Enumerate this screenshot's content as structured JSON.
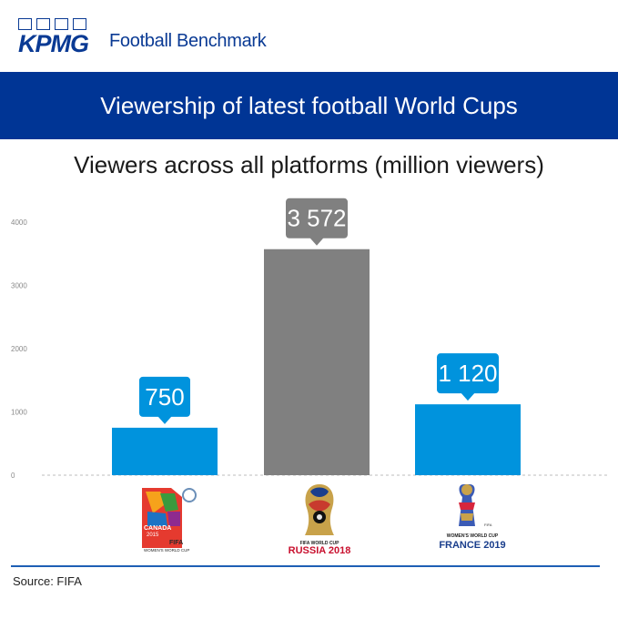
{
  "brand": {
    "logo_name": "KPMG",
    "subtitle": "Football Benchmark",
    "color": "#0a3a94"
  },
  "banner": {
    "title": "Viewership of latest football World Cups",
    "color": "#003595"
  },
  "chart_data": {
    "type": "bar",
    "title": "Viewers across all platforms (million viewers)",
    "xlabel": "",
    "ylabel": "",
    "ylim": [
      0,
      4000
    ],
    "yticks": [
      "0",
      "1000",
      "2000",
      "3000",
      "4000"
    ],
    "categories": [
      "Canada 2015 FIFA Women's World Cup",
      "FIFA World Cup Russia 2018",
      "FIFA Women's World Cup France 2019"
    ],
    "values": [
      750,
      3572,
      1120
    ],
    "data_labels": [
      "750",
      "3 572",
      "1 120"
    ],
    "colors": [
      "#0093dd",
      "#808080",
      "#0093dd"
    ],
    "grid": false,
    "legend": "none"
  },
  "logos": {
    "canada": {
      "line1": "CANADA",
      "line2": "2015",
      "line3": "FIFA",
      "line4": "WOMEN'S WORLD CUP"
    },
    "russia": {
      "line1": "FIFA WORLD CUP",
      "line2": "RUSSIA 2018"
    },
    "france": {
      "line1": "FIFA",
      "line2": "WOMEN'S WORLD CUP",
      "line3": "FRANCE 2019"
    }
  },
  "footer": {
    "source": "Source: FIFA"
  }
}
